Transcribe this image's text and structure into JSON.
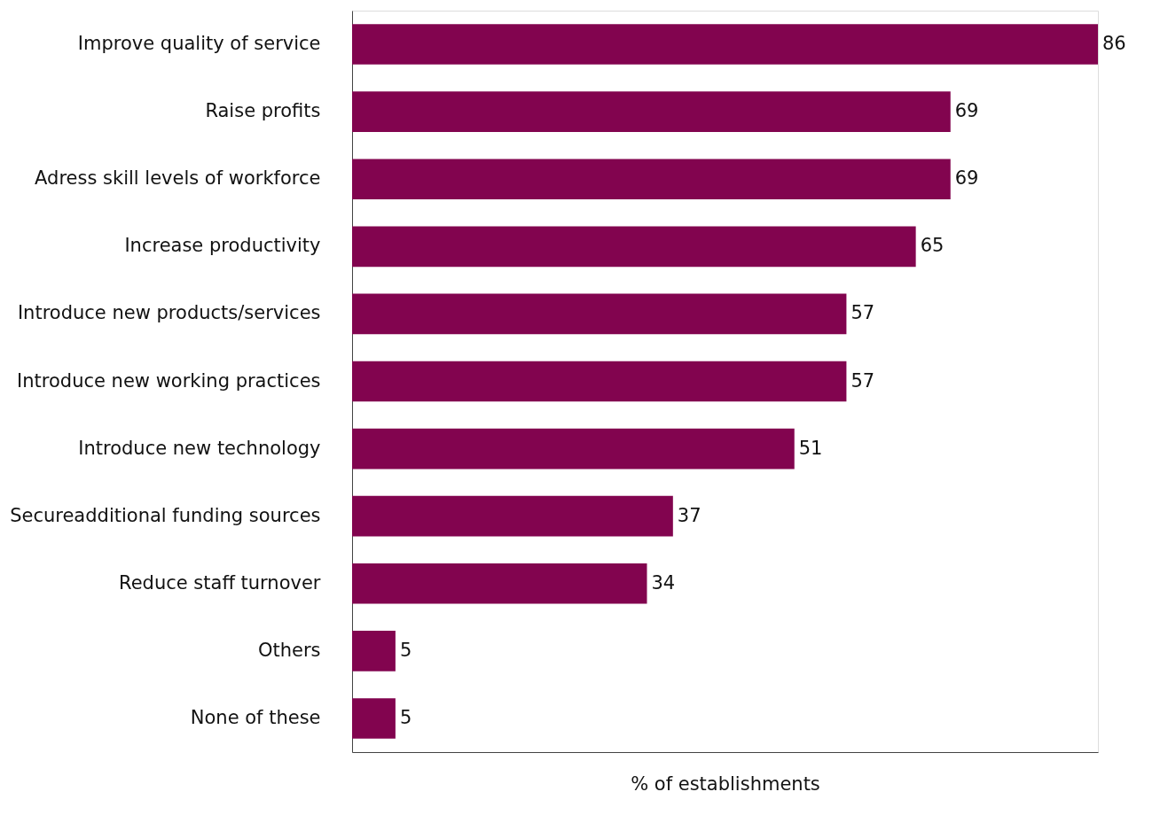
{
  "chart_data": {
    "type": "bar",
    "orientation": "horizontal",
    "xlabel": "% of establishments",
    "categories": [
      "Improve quality of service",
      "Raise profits",
      "Adress skill levels of workforce",
      "Increase productivity",
      "Introduce new products/services",
      "Introduce new working practices",
      "Introduce new technology",
      "Secureadditional funding sources",
      "Reduce staff turnover",
      "Others",
      "None of these"
    ],
    "values": [
      86,
      69,
      69,
      65,
      57,
      57,
      51,
      37,
      34,
      5,
      5
    ],
    "color": "#82044f",
    "data_labels": true,
    "grid": false,
    "tick_labels": "y"
  }
}
